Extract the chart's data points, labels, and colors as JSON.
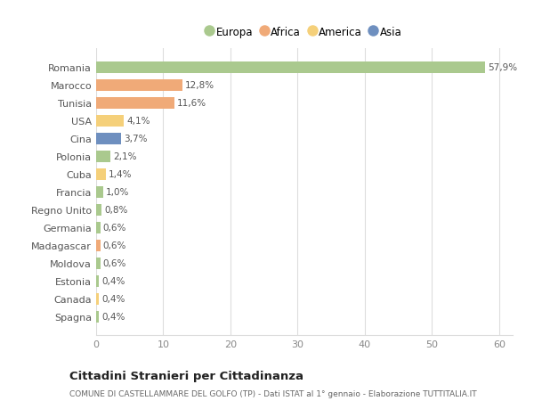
{
  "countries": [
    "Romania",
    "Marocco",
    "Tunisia",
    "USA",
    "Cina",
    "Polonia",
    "Cuba",
    "Francia",
    "Regno Unito",
    "Germania",
    "Madagascar",
    "Moldova",
    "Estonia",
    "Canada",
    "Spagna"
  ],
  "values": [
    57.9,
    12.8,
    11.6,
    4.1,
    3.7,
    2.1,
    1.4,
    1.0,
    0.8,
    0.6,
    0.6,
    0.6,
    0.4,
    0.4,
    0.4
  ],
  "labels": [
    "57,9%",
    "12,8%",
    "11,6%",
    "4,1%",
    "3,7%",
    "2,1%",
    "1,4%",
    "1,0%",
    "0,8%",
    "0,6%",
    "0,6%",
    "0,6%",
    "0,4%",
    "0,4%",
    "0,4%"
  ],
  "categories": [
    "Europa",
    "Africa",
    "Africa",
    "America",
    "Asia",
    "Europa",
    "America",
    "Europa",
    "Europa",
    "Europa",
    "Africa",
    "Europa",
    "Europa",
    "America",
    "Europa"
  ],
  "colors": {
    "Europa": "#aac98e",
    "Africa": "#f0aa78",
    "America": "#f5d07a",
    "Asia": "#6e8fbf"
  },
  "title": "Cittadini Stranieri per Cittadinanza",
  "subtitle": "COMUNE DI CASTELLAMMARE DEL GOLFO (TP) - Dati ISTAT al 1° gennaio - Elaborazione TUTTITALIA.IT",
  "xlim": [
    0,
    62
  ],
  "xticks": [
    0,
    10,
    20,
    30,
    40,
    50,
    60
  ],
  "background_color": "#ffffff",
  "grid_color": "#dddddd",
  "legend_order": [
    "Europa",
    "Africa",
    "America",
    "Asia"
  ]
}
